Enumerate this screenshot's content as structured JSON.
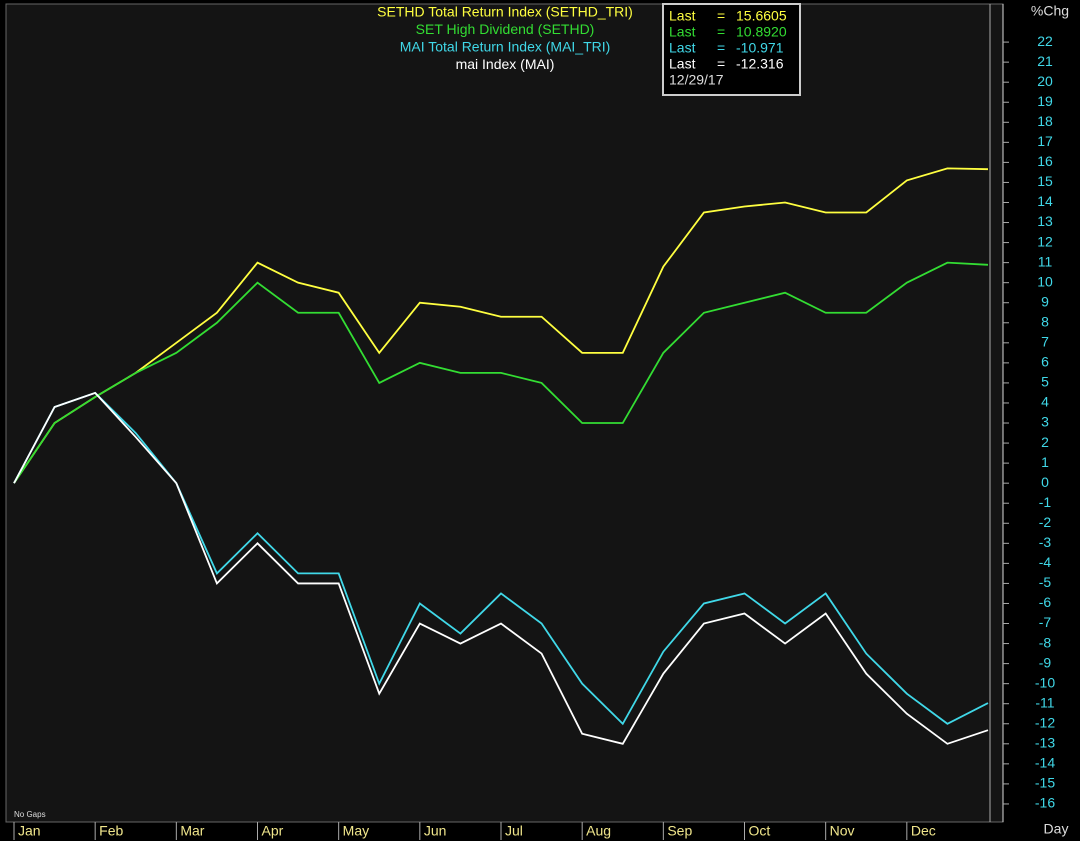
{
  "chart_data": {
    "type": "line",
    "categories": [
      "Jan",
      null,
      "Feb",
      null,
      "Mar",
      null,
      "Apr",
      null,
      "May",
      null,
      "Jun",
      null,
      "Jul",
      null,
      "Aug",
      null,
      "Sep",
      null,
      "Oct",
      null,
      "Nov",
      null,
      "Dec",
      null,
      null
    ],
    "series": [
      {
        "name": "SETHD  Total  Return Index (SETHD_TRI)",
        "color": "#ffff40",
        "values": [
          0,
          3,
          4.3,
          5.5,
          7,
          8.5,
          11,
          10,
          9.5,
          6.5,
          9,
          8.8,
          8.3,
          8.3,
          6.5,
          6.5,
          10.8,
          13.5,
          13.8,
          14,
          13.5,
          13.5,
          15.1,
          15.7,
          15.66
        ]
      },
      {
        "name": "SET  High  Dividend  (SETHD)",
        "color": "#33dd33",
        "values": [
          0,
          3,
          4.3,
          5.5,
          6.5,
          8,
          10,
          8.5,
          8.5,
          5,
          6,
          5.5,
          5.5,
          5,
          3,
          3,
          6.5,
          8.5,
          9,
          9.5,
          8.5,
          8.5,
          10,
          11,
          10.89
        ]
      },
      {
        "name": "MAI  Total  Return Index (MAI_TRI)",
        "color": "#40d8e8",
        "values": [
          0,
          3.8,
          4.5,
          2.5,
          0,
          -4.5,
          -2.5,
          -4.5,
          -4.5,
          -10,
          -6,
          -7.5,
          -5.5,
          -7,
          -10,
          -12,
          -8.4,
          -6,
          -5.5,
          -7,
          -5.5,
          -8.5,
          -10.5,
          -12,
          -10.97
        ]
      },
      {
        "name": "mai  Index  (MAI)",
        "color": "#ffffff",
        "values": [
          0,
          3.8,
          4.5,
          2.3,
          0,
          -5,
          -3,
          -5,
          -5,
          -10.5,
          -7,
          -8,
          -7,
          -8.5,
          -12.5,
          -13,
          -9.5,
          -7,
          -6.5,
          -8,
          -6.5,
          -9.5,
          -11.5,
          -13,
          -12.32
        ]
      }
    ],
    "last_box": {
      "rows": [
        {
          "label": "Last",
          "sign": "=",
          "value": "15.6605"
        },
        {
          "label": "Last",
          "sign": "=",
          "value": "10.8920"
        },
        {
          "label": "Last",
          "sign": "=",
          "value": "-10.971"
        },
        {
          "label": "Last",
          "sign": "=",
          "value": "-12.316"
        }
      ],
      "date": "12/29/17"
    },
    "y_axis_label": "%Chg",
    "x_axis_label": "Day",
    "note": "No Gaps",
    "ylim": [
      -16.9,
      23.85
    ],
    "yticks": [
      -16,
      -15,
      -14,
      -13,
      -12,
      -11,
      -10,
      -9,
      -8,
      -7,
      -6,
      -5,
      -4,
      -3,
      -2,
      -1,
      0,
      1,
      2,
      3,
      4,
      5,
      6,
      7,
      8,
      9,
      10,
      11,
      12,
      13,
      14,
      15,
      16,
      17,
      18,
      19,
      20,
      21,
      22
    ],
    "grid": false
  }
}
